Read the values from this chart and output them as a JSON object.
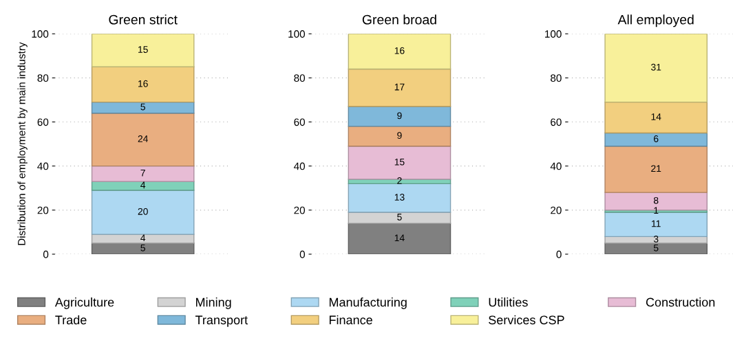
{
  "chart_data": [
    {
      "type": "bar",
      "stacked": true,
      "title": "Green strict",
      "ylabel": "Distribution of employment by main industry",
      "categories": [
        null
      ],
      "ylim": [
        0,
        100
      ],
      "yticks": [
        0,
        20,
        40,
        60,
        80,
        100
      ],
      "grid": "y",
      "data_labels": true,
      "legend": "bottom",
      "series": [
        {
          "name": "Agriculture",
          "color": "#808080",
          "values": [
            5
          ]
        },
        {
          "name": "Mining",
          "color": "#d3d3d3",
          "values": [
            4
          ]
        },
        {
          "name": "Manufacturing",
          "color": "#add8f2",
          "values": [
            20
          ]
        },
        {
          "name": "Utilities",
          "color": "#7fd1b9",
          "values": [
            4
          ]
        },
        {
          "name": "Construction",
          "color": "#e7bcd5",
          "values": [
            7
          ]
        },
        {
          "name": "Trade",
          "color": "#e9ae80",
          "values": [
            24
          ]
        },
        {
          "name": "Transport",
          "color": "#7fb8da",
          "values": [
            5
          ]
        },
        {
          "name": "Finance",
          "color": "#f2cf7f",
          "values": [
            16
          ]
        },
        {
          "name": "Services CSP",
          "color": "#f8f09a",
          "values": [
            15
          ]
        }
      ]
    },
    {
      "type": "bar",
      "stacked": true,
      "title": "Green broad",
      "categories": [
        null
      ],
      "ylim": [
        0,
        100
      ],
      "yticks": [
        0,
        20,
        40,
        60,
        80,
        100
      ],
      "grid": "y",
      "data_labels": true,
      "series": [
        {
          "color": "#808080",
          "values": [
            14
          ]
        },
        {
          "color": "#d3d3d3",
          "values": [
            5
          ]
        },
        {
          "color": "#add8f2",
          "values": [
            13
          ]
        },
        {
          "color": "#7fd1b9",
          "values": [
            2
          ]
        },
        {
          "color": "#e7bcd5",
          "values": [
            15
          ]
        },
        {
          "color": "#e9ae80",
          "values": [
            9
          ]
        },
        {
          "color": "#7fb8da",
          "values": [
            9
          ]
        },
        {
          "color": "#f2cf7f",
          "values": [
            17
          ]
        },
        {
          "color": "#f8f09a",
          "values": [
            16
          ]
        }
      ]
    },
    {
      "type": "bar",
      "stacked": true,
      "title": "All employed",
      "categories": [
        null
      ],
      "ylim": [
        0,
        100
      ],
      "yticks": [
        0,
        20,
        40,
        60,
        80,
        100
      ],
      "grid": "y",
      "data_labels": true,
      "series": [
        {
          "color": "#808080",
          "values": [
            5
          ]
        },
        {
          "color": "#d3d3d3",
          "values": [
            3
          ]
        },
        {
          "color": "#add8f2",
          "values": [
            11
          ]
        },
        {
          "color": "#7fd1b9",
          "values": [
            1
          ]
        },
        {
          "color": "#e7bcd5",
          "values": [
            8
          ]
        },
        {
          "color": "#e9ae80",
          "values": [
            21
          ]
        },
        {
          "color": "#7fb8da",
          "values": [
            6
          ]
        },
        {
          "color": "#f2cf7f",
          "values": [
            14
          ]
        },
        {
          "color": "#f8f09a",
          "values": [
            31
          ]
        }
      ]
    }
  ]
}
